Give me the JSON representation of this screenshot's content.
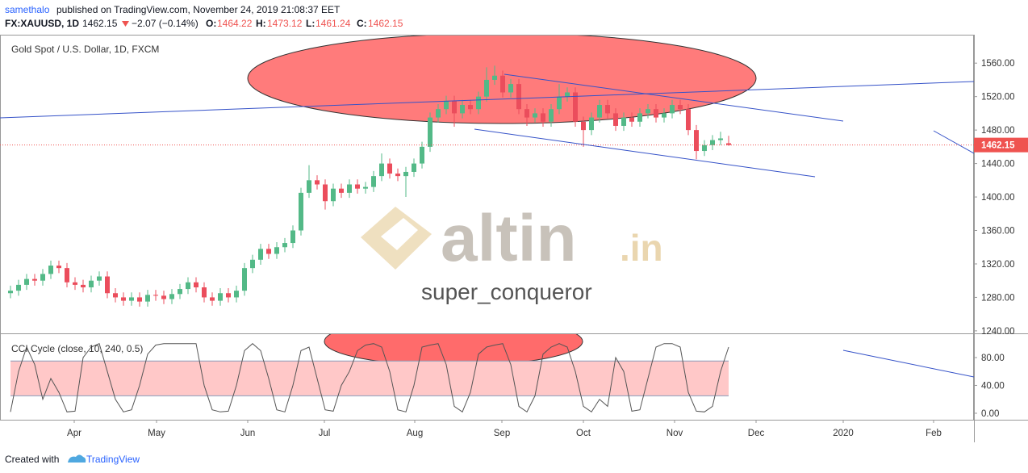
{
  "header": {
    "author": "samethalo",
    "published": "published on TradingView.com, November 24, 2019 21:08:37 EET",
    "symbol": "FX:XAUUSD, 1D",
    "change": "−2.07 (−0.14%)",
    "ohlc_labels": [
      "O:",
      "H:",
      "L:",
      "C:"
    ]
  },
  "chart_data": [
    {
      "type": "candlestick",
      "title": "Gold Spot / U.S. Dollar, 1D, FXCM",
      "up_color": "#53b987",
      "down_color": "#eb4d5c",
      "open": [
        1285,
        1288,
        1295,
        1302,
        1300,
        1308,
        1318,
        1315,
        1298,
        1295,
        1292,
        1300,
        1305,
        1285,
        1280,
        1276,
        1280,
        1275,
        1283,
        1282,
        1278,
        1284,
        1290,
        1298,
        1292,
        1280,
        1276,
        1285,
        1280,
        1288,
        1315,
        1325,
        1338,
        1332,
        1340,
        1345,
        1360,
        1405,
        1420,
        1415,
        1395,
        1410,
        1405,
        1415,
        1410,
        1412,
        1425,
        1440,
        1428,
        1425,
        1430,
        1440,
        1460,
        1495,
        1505,
        1515,
        1500,
        1510,
        1505,
        1520,
        1540,
        1545,
        1525,
        1535,
        1505,
        1495,
        1500,
        1490,
        1505,
        1520,
        1525,
        1490,
        1480,
        1495,
        1510,
        1500,
        1485,
        1495,
        1490,
        1500,
        1505,
        1495,
        1500,
        1510,
        1505,
        1480,
        1455,
        1462,
        1468,
        1464.22
      ],
      "high": [
        1294,
        1301,
        1308,
        1308,
        1314,
        1324,
        1324,
        1321,
        1304,
        1301,
        1306,
        1311,
        1311,
        1291,
        1286,
        1286,
        1286,
        1289,
        1289,
        1288,
        1290,
        1296,
        1304,
        1304,
        1298,
        1286,
        1291,
        1291,
        1294,
        1321,
        1331,
        1344,
        1344,
        1346,
        1351,
        1366,
        1411,
        1438,
        1426,
        1421,
        1416,
        1416,
        1421,
        1421,
        1418,
        1431,
        1452,
        1446,
        1434,
        1436,
        1446,
        1466,
        1501,
        1511,
        1521,
        1521,
        1516,
        1516,
        1526,
        1555,
        1557,
        1551,
        1541,
        1541,
        1511,
        1506,
        1506,
        1511,
        1535,
        1531,
        1531,
        1496,
        1501,
        1516,
        1516,
        1506,
        1501,
        1501,
        1506,
        1511,
        1511,
        1506,
        1516,
        1516,
        1511,
        1486,
        1468,
        1474,
        1478,
        1473.12
      ],
      "low": [
        1279,
        1282,
        1289,
        1294,
        1294,
        1302,
        1309,
        1292,
        1289,
        1286,
        1286,
        1294,
        1279,
        1274,
        1270,
        1270,
        1269,
        1269,
        1276,
        1272,
        1272,
        1278,
        1284,
        1286,
        1274,
        1270,
        1270,
        1274,
        1274,
        1282,
        1309,
        1319,
        1326,
        1326,
        1334,
        1339,
        1354,
        1399,
        1409,
        1385,
        1389,
        1399,
        1399,
        1404,
        1404,
        1406,
        1419,
        1422,
        1419,
        1400,
        1424,
        1434,
        1454,
        1489,
        1499,
        1484,
        1494,
        1499,
        1499,
        1514,
        1534,
        1519,
        1519,
        1499,
        1485,
        1489,
        1484,
        1484,
        1499,
        1514,
        1484,
        1460,
        1474,
        1489,
        1494,
        1479,
        1479,
        1484,
        1484,
        1494,
        1489,
        1489,
        1494,
        1499,
        1474,
        1445,
        1449,
        1456,
        1462,
        1461.24
      ],
      "close": [
        1288,
        1295,
        1302,
        1300,
        1308,
        1318,
        1315,
        1298,
        1295,
        1292,
        1300,
        1305,
        1285,
        1280,
        1276,
        1280,
        1275,
        1283,
        1282,
        1278,
        1284,
        1290,
        1298,
        1292,
        1280,
        1276,
        1285,
        1280,
        1288,
        1315,
        1325,
        1338,
        1332,
        1340,
        1345,
        1360,
        1405,
        1420,
        1415,
        1395,
        1410,
        1405,
        1415,
        1410,
        1412,
        1425,
        1440,
        1428,
        1425,
        1430,
        1440,
        1460,
        1495,
        1505,
        1515,
        1500,
        1510,
        1505,
        1520,
        1540,
        1545,
        1525,
        1535,
        1505,
        1495,
        1500,
        1490,
        1505,
        1520,
        1525,
        1490,
        1480,
        1495,
        1510,
        1500,
        1485,
        1495,
        1490,
        1500,
        1505,
        1495,
        1500,
        1510,
        1505,
        1480,
        1455,
        1462,
        1468,
        1470,
        1462.15
      ],
      "ylim": [
        1237,
        1593
      ],
      "yticks": [
        {
          "value": 1240,
          "label": "1240.00"
        },
        {
          "value": 1280,
          "label": "1280.00"
        },
        {
          "value": 1320,
          "label": "1320.00"
        },
        {
          "value": 1360,
          "label": "1360.00"
        },
        {
          "value": 1400,
          "label": "1400.00"
        },
        {
          "value": 1440,
          "label": "1440.00"
        },
        {
          "value": 1480,
          "label": "1480.00"
        },
        {
          "value": 1520,
          "label": "1520.00"
        },
        {
          "value": 1560,
          "label": "1560.00"
        }
      ],
      "xlim": [
        -1.3,
        119.4
      ],
      "xticks": [
        {
          "value": 7.9,
          "label": "Apr"
        },
        {
          "value": 18.1,
          "label": "May"
        },
        {
          "value": 29.4,
          "label": "Jun"
        },
        {
          "value": 38.9,
          "label": "Jul"
        },
        {
          "value": 50.1,
          "label": "Aug"
        },
        {
          "value": 60.9,
          "label": "Sep"
        },
        {
          "value": 71,
          "label": "Oct"
        },
        {
          "value": 82.3,
          "label": "Nov"
        },
        {
          "value": 92.4,
          "label": "Dec"
        },
        {
          "value": 103.2,
          "label": "2020"
        },
        {
          "value": 114.4,
          "label": "Feb"
        }
      ],
      "grid": false
    },
    {
      "type": "line",
      "title": "CCI Cycle (close, 10, 240, 0.5)",
      "color": "#555555",
      "values": [
        2,
        60,
        95,
        70,
        20,
        50,
        30,
        2,
        3,
        80,
        95,
        100,
        60,
        20,
        2,
        5,
        40,
        85,
        98,
        100,
        100,
        100,
        100,
        100,
        40,
        5,
        2,
        3,
        40,
        90,
        100,
        90,
        50,
        5,
        2,
        40,
        90,
        95,
        50,
        5,
        3,
        40,
        60,
        90,
        98,
        100,
        95,
        60,
        5,
        2,
        40,
        95,
        98,
        100,
        70,
        10,
        2,
        30,
        85,
        95,
        98,
        100,
        70,
        10,
        2,
        25,
        85,
        95,
        100,
        95,
        60,
        10,
        2,
        20,
        10,
        80,
        60,
        3,
        5,
        50,
        95,
        100,
        100,
        95,
        30,
        3,
        2,
        10,
        60,
        95
      ],
      "band": [
        25,
        75
      ],
      "band_color": "#ffc8c8",
      "ylim": [
        -9.3,
        113.6
      ],
      "yticks": [
        {
          "value": 0,
          "label": "0.00"
        },
        {
          "value": 40,
          "label": "40.00"
        },
        {
          "value": 80,
          "label": "80.00"
        }
      ]
    }
  ],
  "watermark": {
    "brand": "altin",
    "suffix": ".in",
    "user": "super_conqueror"
  },
  "footer": {
    "created": "Created with",
    "brand": "TradingView"
  }
}
